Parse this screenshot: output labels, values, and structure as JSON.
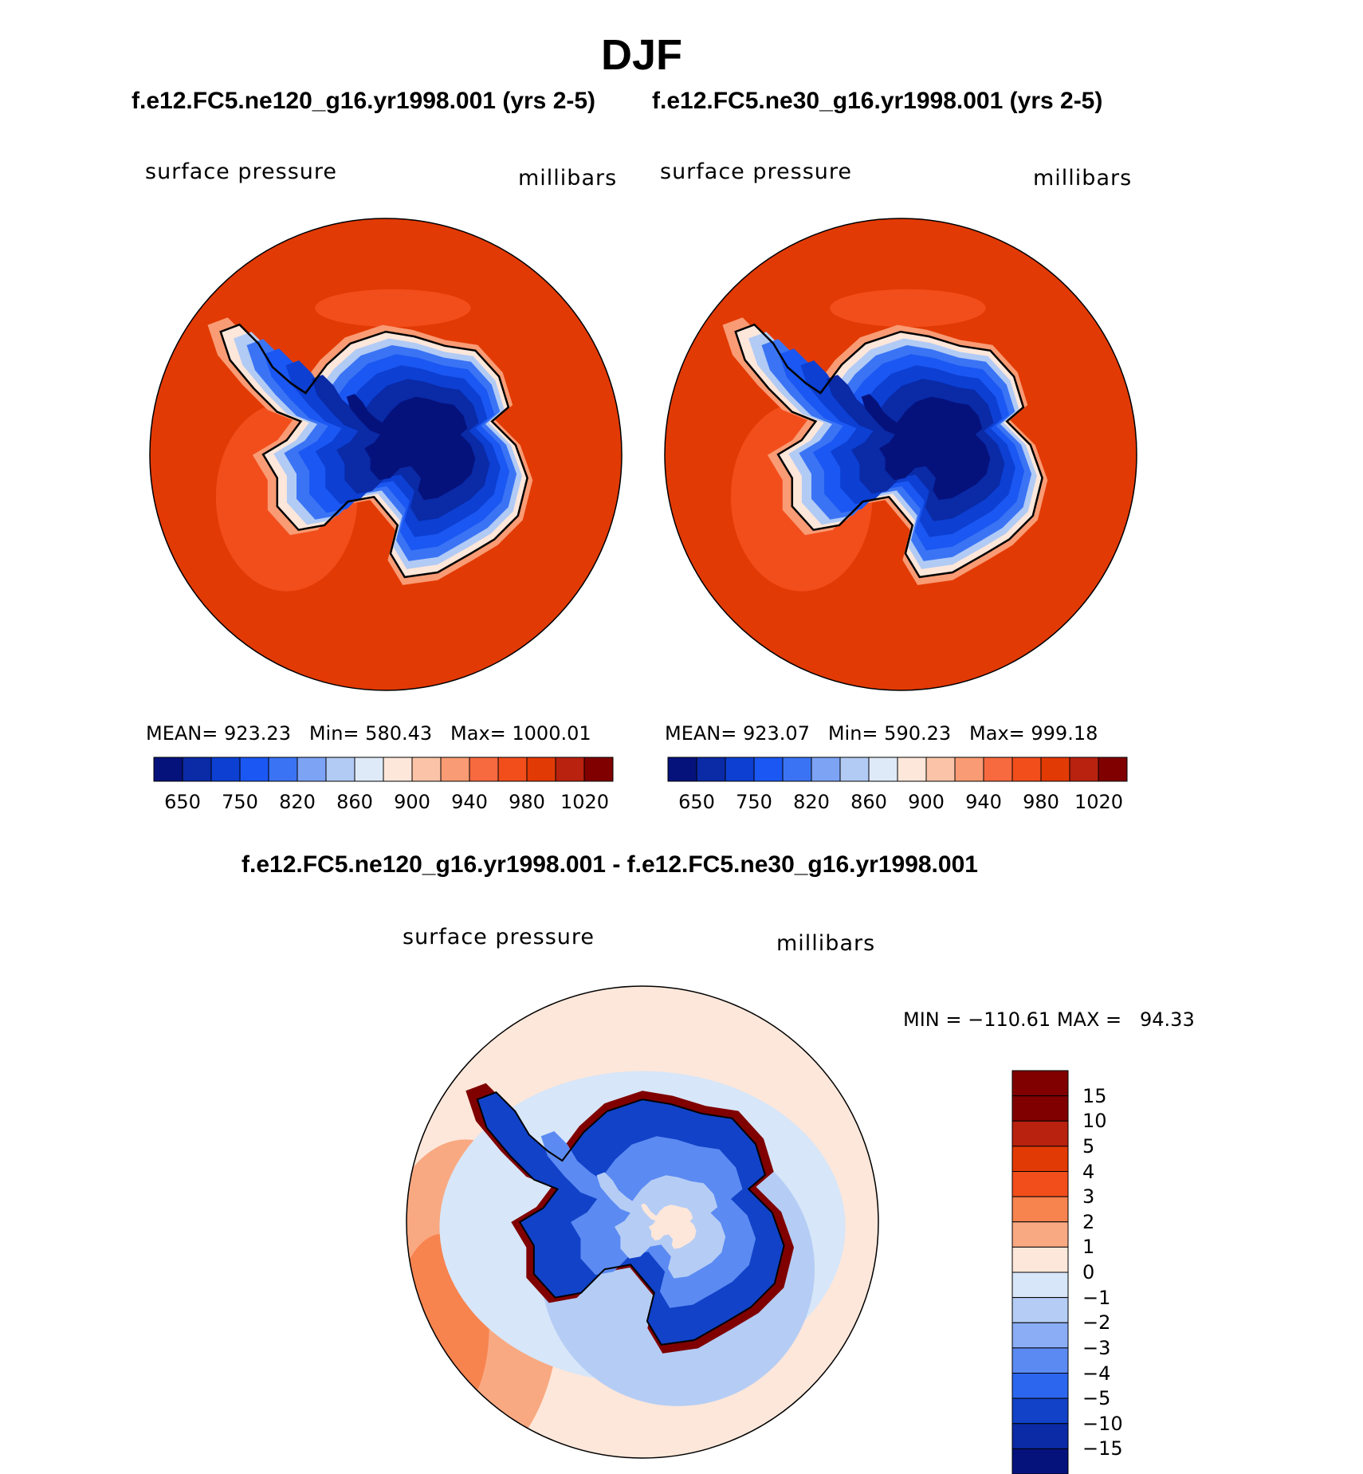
{
  "figure": {
    "season": "DJF",
    "top_left_case": "f.e12.FC5.ne120_g16.yr1998.001 (yrs 2-5)",
    "top_right_case": "f.e12.FC5.ne30_g16.yr1998.001 (yrs 2-5)",
    "diff_title": "f.e12.FC5.ne120_g16.yr1998.001 - f.e12.FC5.ne30_g16.yr1998.001"
  },
  "panels": {
    "left": {
      "variable": "surface pressure",
      "units": "millibars",
      "stats": "MEAN= 923.23   Min= 580.43   Max= 1000.01"
    },
    "right": {
      "variable": "surface pressure",
      "units": "millibars",
      "stats": "MEAN= 923.07   Min= 590.23   Max= 999.18"
    },
    "diff": {
      "variable": "surface pressure",
      "units": "millibars",
      "stats": "MIN = −110.61 MAX =   94.33"
    }
  },
  "colors": {
    "ocean_fill": "#e23a04",
    "abs_scale": [
      "#06127c",
      "#0a2aa6",
      "#0c3fd2",
      "#1b57f2",
      "#3a74f5",
      "#7da3f5",
      "#b2cbf5",
      "#dfeaf8",
      "#fde7da",
      "#fbc4a9",
      "#f99b74",
      "#f76a3f",
      "#f24e1c",
      "#e23a04",
      "#b8220e",
      "#800000"
    ],
    "diff_scale": [
      "#800000",
      "#b8220e",
      "#e23a04",
      "#f24e1c",
      "#f7834f",
      "#f9a982",
      "#fde7da",
      "#d7e6f8",
      "#b5cdf5",
      "#8aadf5",
      "#5b8af2",
      "#2c66ee",
      "#1142c8",
      "#0a2aa6",
      "#06127c"
    ]
  },
  "chart_data": [
    {
      "type": "heatmap",
      "title": "f.e12.FC5.ne120_g16.yr1998.001 (yrs 2-5)",
      "subtitle": "surface pressure",
      "units": "millibars",
      "projection": "south polar stereographic",
      "stats": {
        "mean": 923.23,
        "min": 580.43,
        "max": 1000.01
      },
      "colorbar_levels": [
        650,
        700,
        750,
        800,
        820,
        840,
        860,
        880,
        900,
        920,
        940,
        960,
        980,
        1000,
        1020
      ],
      "colorbar_tick_labels": [
        "650",
        "750",
        "820",
        "860",
        "900",
        "940",
        "980",
        "1020"
      ]
    },
    {
      "type": "heatmap",
      "title": "f.e12.FC5.ne30_g16.yr1998.001 (yrs 2-5)",
      "subtitle": "surface pressure",
      "units": "millibars",
      "projection": "south polar stereographic",
      "stats": {
        "mean": 923.07,
        "min": 590.23,
        "max": 999.18
      },
      "colorbar_levels": [
        650,
        700,
        750,
        800,
        820,
        840,
        860,
        880,
        900,
        920,
        940,
        960,
        980,
        1000,
        1020
      ],
      "colorbar_tick_labels": [
        "650",
        "750",
        "820",
        "860",
        "900",
        "940",
        "980",
        "1020"
      ]
    },
    {
      "type": "heatmap",
      "title": "f.e12.FC5.ne120_g16.yr1998.001 - f.e12.FC5.ne30_g16.yr1998.001",
      "subtitle": "surface pressure",
      "units": "millibars",
      "projection": "south polar stereographic",
      "stats": {
        "min": -110.61,
        "max": 94.33
      },
      "colorbar_levels": [
        15,
        10,
        5,
        4,
        3,
        2,
        1,
        0,
        -1,
        -2,
        -3,
        -4,
        -5,
        -10,
        -15
      ],
      "colorbar_tick_labels": [
        "15",
        "10",
        "5",
        "4",
        "3",
        "2",
        "1",
        "0",
        "−1",
        "−2",
        "−3",
        "−4",
        "−5",
        "−10",
        "−15"
      ]
    }
  ]
}
